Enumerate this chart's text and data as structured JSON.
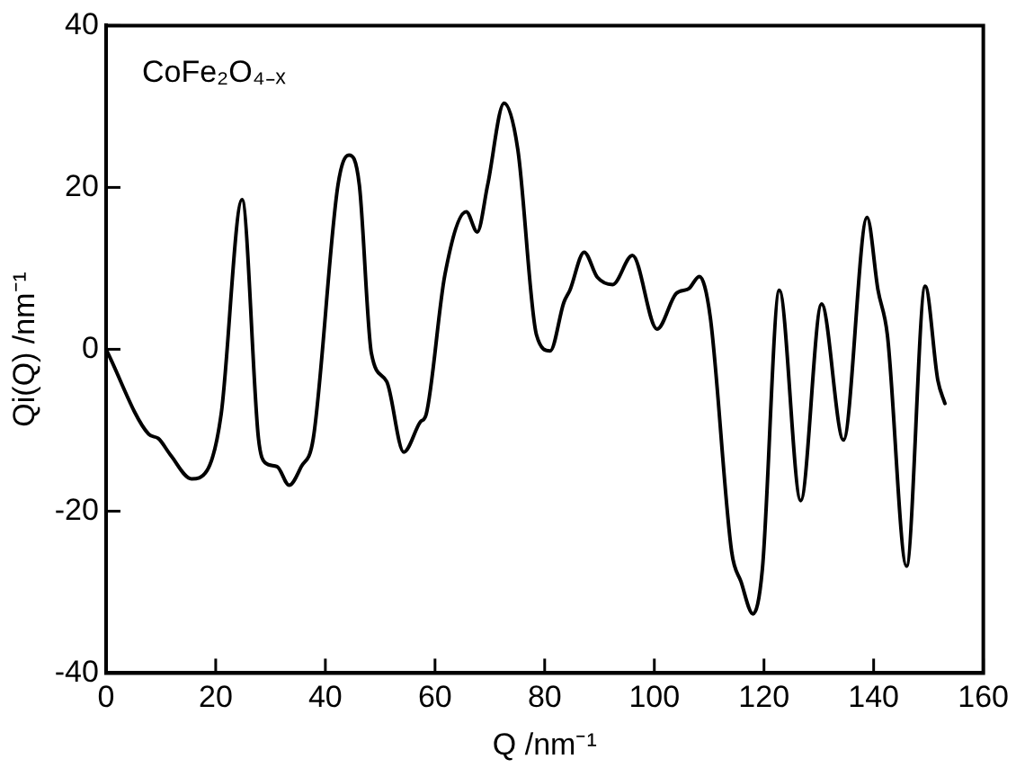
{
  "chart_data": {
    "type": "line",
    "xlabel": "Q /nm⁻¹",
    "ylabel": "Qi(Q) /nm⁻¹",
    "annotations": [
      "CoFe₂O₄₋ₓ"
    ],
    "xlim": [
      0,
      160
    ],
    "xticks": [
      0,
      20,
      40,
      60,
      80,
      100,
      120,
      140,
      160
    ],
    "ylim": [
      -40,
      40
    ],
    "yticks": [
      -40,
      -20,
      0,
      20,
      40
    ],
    "marker": "none",
    "line_style": "solid",
    "legend": false,
    "grid": false,
    "series": [
      {
        "color": "#000000",
        "x": [
          0,
          7.8,
          9.5,
          11.7,
          15.6,
          18.4,
          21,
          24.8,
          27.8,
          29,
          31.2,
          33.4,
          35.6,
          37.8,
          42.3,
          44.3,
          46.2,
          48.4,
          51.2,
          54.3,
          57.3,
          58.4,
          61.8,
          65.7,
          67.7,
          69.6,
          72.6,
          75.1,
          78.5,
          81,
          83.5,
          84.6,
          87.2,
          89.6,
          92.4,
          96,
          100.5,
          104,
          106.3,
          108.2,
          110.2,
          114.1,
          115.8,
          118,
          119.7,
          122.8,
          126.7,
          130.5,
          134.5,
          138.8,
          140.8,
          142.5,
          146,
          149.4,
          151.7,
          153
        ],
        "values": [
          0,
          -10.5,
          -11,
          -13,
          -16,
          -15,
          -8,
          18.5,
          -11,
          -14,
          -14.5,
          -16.8,
          -14.5,
          -11,
          20.3,
          24,
          20.3,
          -0.5,
          -4,
          -12.7,
          -9,
          -8,
          9.2,
          17,
          14.5,
          20.3,
          30.4,
          24.7,
          1.8,
          -0.2,
          5.8,
          7.3,
          12,
          8.9,
          8,
          11.6,
          2.5,
          6.9,
          7.5,
          9,
          4,
          -25,
          -28.7,
          -32.7,
          -27.2,
          7.3,
          -18.7,
          5.6,
          -11.2,
          16.3,
          7.3,
          1.8,
          -26.8,
          7.8,
          -3.8,
          -6.7
        ]
      }
    ]
  }
}
